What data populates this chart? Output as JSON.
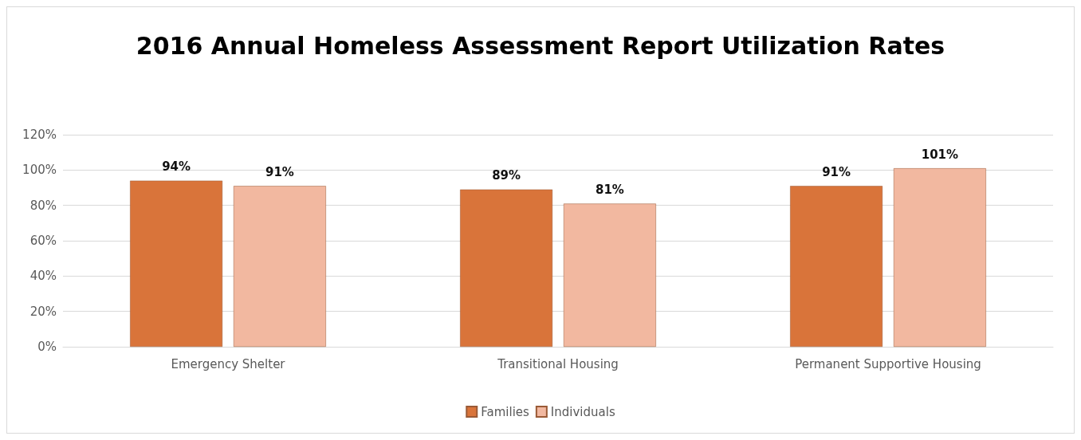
{
  "chart_data": {
    "type": "bar",
    "title": "2016 Annual Homeless Assessment Report Utilization Rates",
    "categories": [
      "Emergency Shelter",
      "Transitional Housing",
      "Permanent Supportive Housing"
    ],
    "series": [
      {
        "name": "Families",
        "color": "#d9743a",
        "values": [
          94,
          89,
          91
        ],
        "value_labels": [
          "94%",
          "89%",
          "91%"
        ]
      },
      {
        "name": "Individuals",
        "color": "#f2b8a0",
        "values": [
          91,
          81,
          101
        ],
        "value_labels": [
          "91%",
          "81%",
          "101%"
        ]
      }
    ],
    "ylim": [
      0,
      120
    ],
    "yticks": [
      {
        "value": 0,
        "label": "0%"
      },
      {
        "value": 20,
        "label": "20%"
      },
      {
        "value": 40,
        "label": "40%"
      },
      {
        "value": 60,
        "label": "60%"
      },
      {
        "value": 80,
        "label": "80%"
      },
      {
        "value": 100,
        "label": "100%"
      },
      {
        "value": 120,
        "label": "120%"
      }
    ],
    "grid": "y",
    "legend": "bottom"
  }
}
